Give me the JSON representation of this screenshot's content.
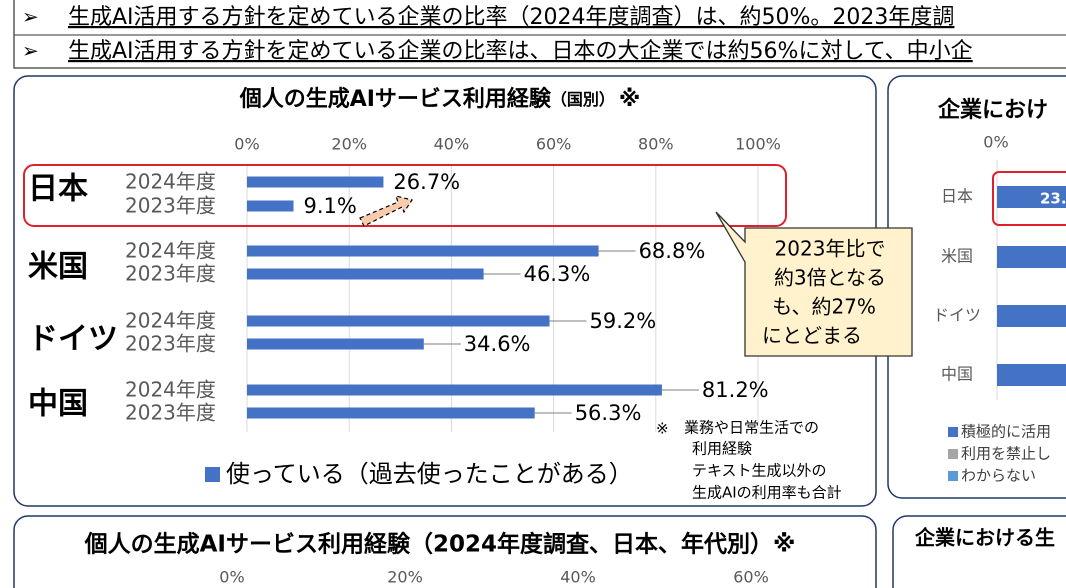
{
  "header": {
    "bullets": [
      "生成AI活用する方針を定めている企業の比率（2024年度調査）は、約50%。2023年度調",
      "生成AI活用する方針を定めている企業の比率は、日本の大企業では約56%に対して、中小企"
    ]
  },
  "chart_data": [
    {
      "type": "bar",
      "title": "個人の生成AIサービス利用経験",
      "title_note": "（国別）",
      "title_mark": "※",
      "categories": [
        "日本",
        "米国",
        "ドイツ",
        "中国"
      ],
      "series": [
        {
          "name": "2024年度",
          "values": [
            26.7,
            68.8,
            59.2,
            81.2
          ],
          "value_labels": [
            "26.7%",
            "68.8%",
            "59.2%",
            "81.2%"
          ]
        },
        {
          "name": "2023年度",
          "values": [
            9.1,
            46.3,
            34.6,
            56.3
          ],
          "value_labels": [
            "9.1%",
            "46.3%",
            "34.6%",
            "56.3%"
          ]
        }
      ],
      "color": "#4472c4",
      "legend": "使っている（過去使ったことがある）",
      "xlim": [
        0,
        100
      ],
      "xticks": [
        {
          "value": 0,
          "label": "0%"
        },
        {
          "value": 20,
          "label": "20%"
        },
        {
          "value": 40,
          "label": "40%"
        },
        {
          "value": 60,
          "label": "60%"
        },
        {
          "value": 80,
          "label": "80%"
        },
        {
          "value": 100,
          "label": "100%"
        }
      ],
      "grid": true,
      "annotation": [
        "2023年比で",
        "約3倍となる",
        "も、約27%",
        "にとどまる"
      ],
      "footnote_mark": "※",
      "footnote": [
        "業務や日常生活での",
        "利用経験",
        "テキスト生成以外の",
        "生成AIの利用率も合計"
      ]
    },
    {
      "type": "bar",
      "title": "企業におけ",
      "categories": [
        "日本",
        "米国",
        "ドイツ",
        "中国"
      ],
      "xticks": [
        {
          "value": 0,
          "label": "0%"
        }
      ],
      "data_labels": [
        "23."
      ],
      "series": [
        {
          "name": "積極的に活用",
          "color": "#4472c4"
        },
        {
          "name": "利用を禁止し",
          "color": "#a5a5a5"
        },
        {
          "name": "わからない",
          "color": "#5b9bd5"
        }
      ]
    },
    {
      "type": "bar",
      "title": "個人の生成AIサービス利用経験（2024年度調査、日本、年代別）※",
      "xlim": [
        0,
        60
      ],
      "xticks": [
        {
          "value": 0,
          "label": "0%"
        },
        {
          "value": 20,
          "label": "20%"
        },
        {
          "value": 40,
          "label": "40%"
        },
        {
          "value": 60,
          "label": "60%"
        }
      ]
    },
    {
      "type": "bar",
      "title": "企業における生"
    }
  ]
}
